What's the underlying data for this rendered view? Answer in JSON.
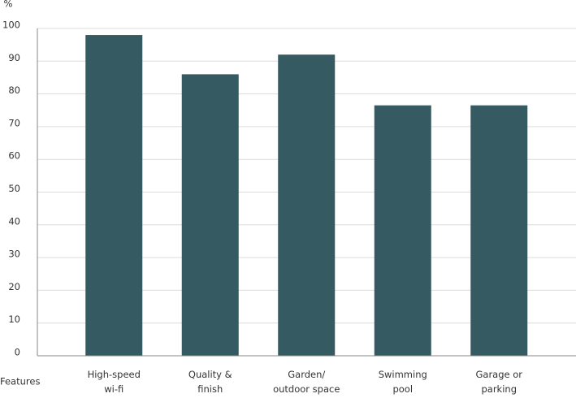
{
  "chart_data": {
    "type": "bar",
    "y_label": "%",
    "x_label": "Features",
    "categories": [
      "High-speed\nwi-fi",
      "Quality &\nfinish",
      "Garden/\noutdoor space",
      "Swimming\npool",
      "Garage or\nparking"
    ],
    "values": [
      98,
      86,
      92,
      76.5,
      76.5
    ],
    "color": "#365a61",
    "ylim": [
      0,
      100
    ],
    "yticks": [
      0,
      10,
      20,
      30,
      40,
      50,
      60,
      70,
      80,
      90,
      100
    ],
    "grid": true
  }
}
